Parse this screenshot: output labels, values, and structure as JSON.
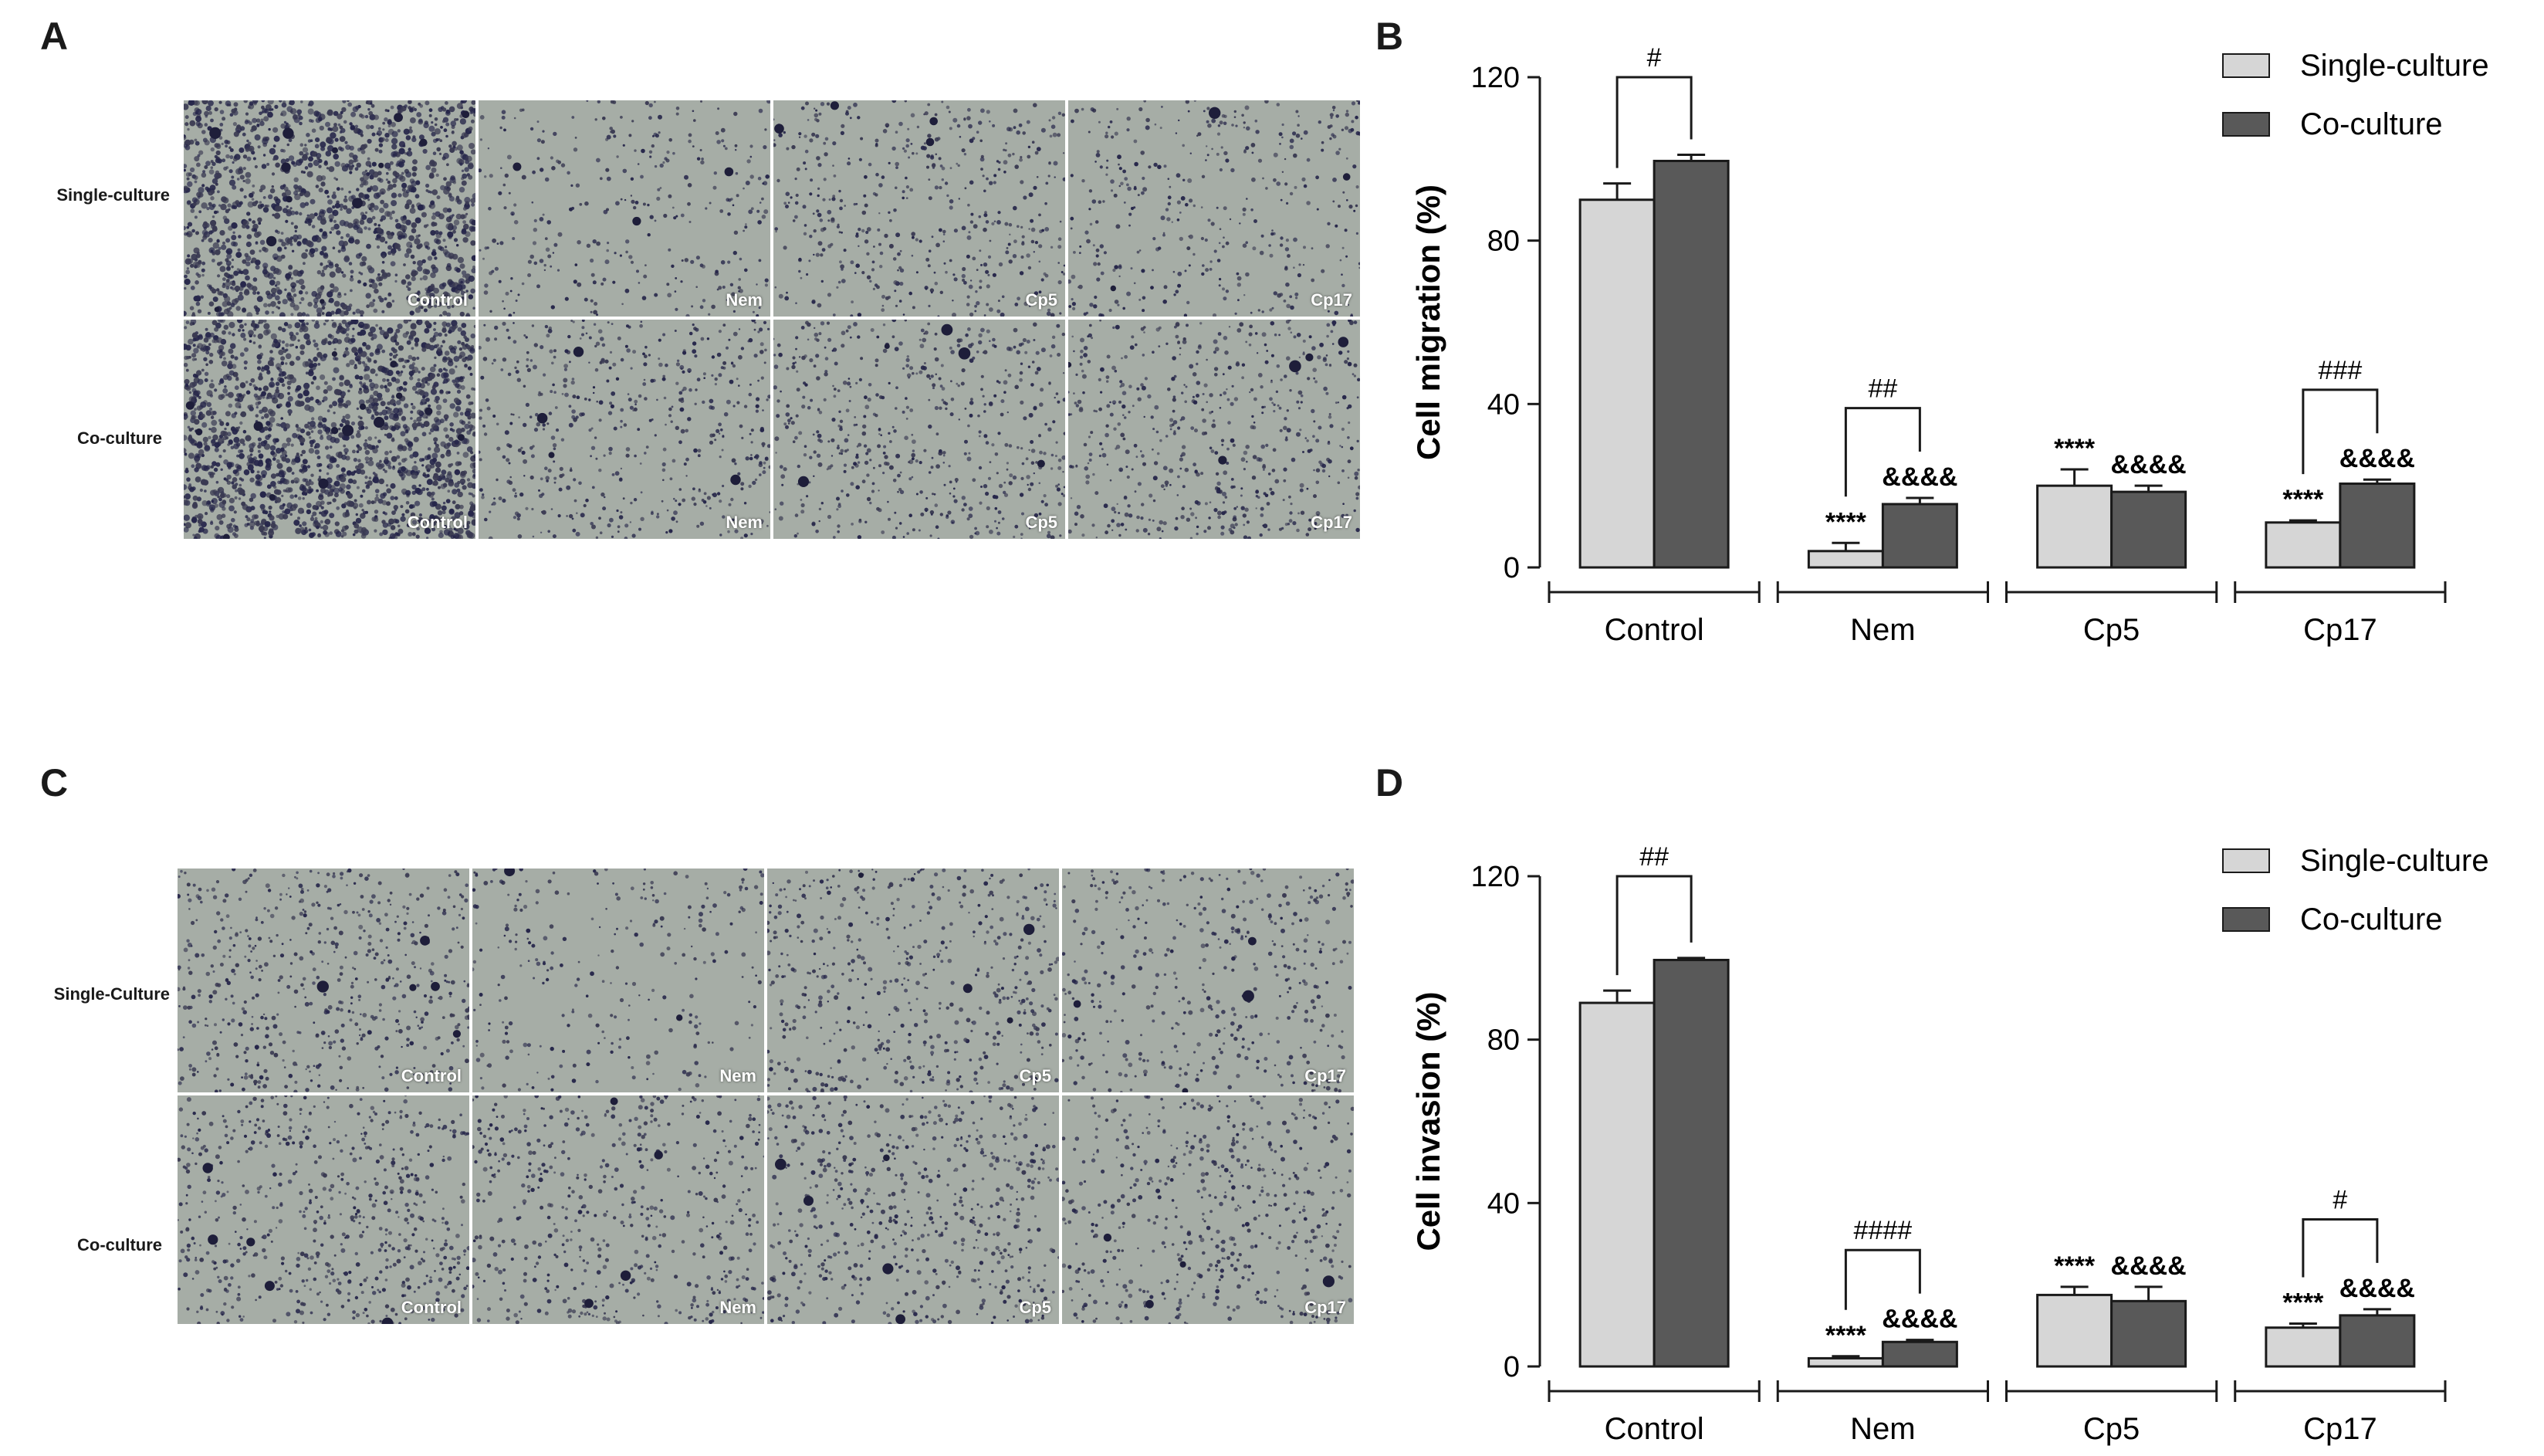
{
  "colors": {
    "single": "#d6d6d6",
    "co": "#595959",
    "axis": "#1a1a1a",
    "cell_bg": "#a6ada6",
    "cell_bg_dense": "#9aa0a9"
  },
  "panels": {
    "A": {
      "letter": "A",
      "row_labels": [
        "Single-culture",
        "Co-culture"
      ],
      "cell_labels": [
        "Control",
        "Nem",
        "Cp5",
        "Cp17"
      ]
    },
    "B": {
      "letter": "B"
    },
    "C": {
      "letter": "C",
      "row_labels": [
        "Single-Culture",
        "Co-culture"
      ],
      "cell_labels": [
        "Control",
        "Nem",
        "Cp5",
        "Cp17"
      ]
    },
    "D": {
      "letter": "D"
    }
  },
  "chart_data": [
    {
      "panel": "B",
      "type": "bar",
      "categories": [
        "Control",
        "Nem",
        "Cp5",
        "Cp17"
      ],
      "ylabel": "Cell migration (%)",
      "ylim": [
        0,
        120
      ],
      "yticks": [
        0,
        40,
        80,
        120
      ],
      "legend_position": "top-right",
      "series": [
        {
          "name": "Single-culture",
          "values": [
            90,
            4,
            20,
            11
          ],
          "errors": [
            4,
            2,
            4,
            0.5
          ],
          "markers": [
            "",
            "****",
            "****",
            "****"
          ]
        },
        {
          "name": "Co-culture",
          "values": [
            99.5,
            15.5,
            18.5,
            20.5
          ],
          "errors": [
            1.5,
            1.5,
            1.5,
            1
          ],
          "markers": [
            "",
            "&&&&",
            "&&&&",
            "&&&&"
          ]
        }
      ],
      "brackets": [
        {
          "category": "Control",
          "label": "#"
        },
        {
          "category": "Nem",
          "label": "##"
        },
        {
          "category": "Cp17",
          "label": "###"
        }
      ]
    },
    {
      "panel": "D",
      "type": "bar",
      "categories": [
        "Control",
        "Nem",
        "Cp5",
        "Cp17"
      ],
      "ylabel": "Cell invasion (%)",
      "ylim": [
        0,
        120
      ],
      "yticks": [
        0,
        40,
        80,
        120
      ],
      "legend_position": "top-right",
      "series": [
        {
          "name": "Single-culture",
          "values": [
            89,
            2,
            17.5,
            9.5
          ],
          "errors": [
            3,
            0.5,
            2,
            1
          ],
          "markers": [
            "",
            "****",
            "****",
            "****"
          ]
        },
        {
          "name": "Co-culture",
          "values": [
            99.5,
            6,
            16,
            12.5
          ],
          "errors": [
            0.5,
            0.5,
            3.5,
            1.5
          ],
          "markers": [
            "",
            "&&&&",
            "&&&&",
            "&&&&"
          ]
        }
      ],
      "brackets": [
        {
          "category": "Control",
          "label": "##"
        },
        {
          "category": "Nem",
          "label": "####"
        },
        {
          "category": "Cp17",
          "label": "#"
        }
      ]
    }
  ]
}
